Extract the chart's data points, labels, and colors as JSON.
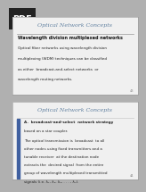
{
  "bg_color": "#b0b0b0",
  "pdf_label": "PDF",
  "slide1": {
    "title": "Optical Network Concepts",
    "subtitle": "Wavelength division multiplexed networks",
    "body_lines": [
      "Optical fiber networks using wavelength division",
      "multiplexing (WDM) techniques can be classified",
      "as either  broadcast-and-select networks  or",
      "wavelength routing networks."
    ],
    "slide_bg": "#f0f0f0",
    "border_color": "#999999",
    "title_color": "#6080a0",
    "subtitle_color": "#111111",
    "body_color": "#222222",
    "line_color": "#999999",
    "page_num": "43"
  },
  "slide2": {
    "title": "Optical Network Concepts",
    "item_line1": "A.  broadcast-and-select  network strategy",
    "item_line2": "based on a star coupler.",
    "body_lines": [
      "The optical transmission is  broadcast  to all",
      "other nodes using fixed transmitters and a",
      "tunable receiver  at the destination node",
      "extracts the  desired signal  from the entire",
      "group of wavelength multiplexed transmitted",
      "signals (i.e. λ₁, λ₂, λ₃, . . . , λₙ)."
    ],
    "slide_bg": "#f0f0f0",
    "border_color": "#999999",
    "title_color": "#6080a0",
    "body_color": "#222222",
    "bar_color": "#4060a0",
    "line_color": "#cccccc",
    "page_num": "44"
  },
  "pdf_bg": "#222222",
  "pdf_text_color": "#ffffff",
  "pdf_fontsize": 7,
  "title_fontsize": 4.5,
  "subtitle_fontsize": 3.5,
  "body_fontsize": 3.0,
  "page_fontsize": 2.5
}
